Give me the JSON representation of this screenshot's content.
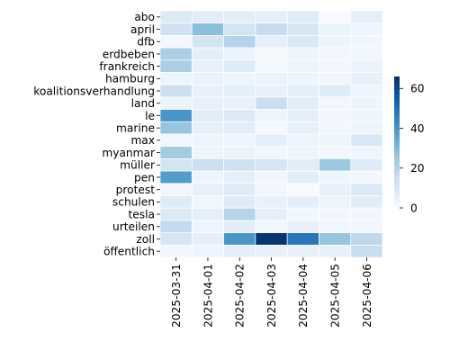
{
  "chart_data": {
    "type": "heatmap",
    "title": "",
    "xlabel": "",
    "ylabel": "",
    "x": [
      "2025-03-31",
      "2025-04-01",
      "2025-04-02",
      "2025-04-03",
      "2025-04-04",
      "2025-04-05",
      "2025-04-06"
    ],
    "y": [
      "abo",
      "april",
      "dfb",
      "erdbeben",
      "frankreich",
      "hamburg",
      "koalitionsverhandlung",
      "land",
      "le",
      "marine",
      "max",
      "myanmar",
      "müller",
      "pen",
      "protest",
      "schulen",
      "tesla",
      "urteilen",
      "zoll",
      "öffentlich"
    ],
    "values": [
      [
        9,
        7,
        7,
        6,
        8,
        0,
        6
      ],
      [
        13,
        28,
        12,
        16,
        11,
        4,
        3
      ],
      [
        2,
        12,
        20,
        6,
        10,
        3,
        2
      ],
      [
        22,
        6,
        4,
        1,
        3,
        2,
        2
      ],
      [
        22,
        5,
        8,
        1,
        3,
        2,
        4
      ],
      [
        3,
        4,
        3,
        4,
        3,
        2,
        5
      ],
      [
        14,
        5,
        6,
        5,
        6,
        8,
        3
      ],
      [
        4,
        5,
        5,
        15,
        7,
        2,
        3
      ],
      [
        40,
        7,
        9,
        3,
        6,
        2,
        3
      ],
      [
        26,
        5,
        7,
        1,
        5,
        2,
        3
      ],
      [
        2,
        3,
        3,
        6,
        3,
        3,
        10
      ],
      [
        24,
        3,
        4,
        2,
        3,
        2,
        3
      ],
      [
        12,
        14,
        13,
        11,
        7,
        25,
        8
      ],
      [
        38,
        3,
        6,
        2,
        7,
        3,
        2
      ],
      [
        2,
        5,
        8,
        2,
        0,
        5,
        9
      ],
      [
        8,
        2,
        8,
        5,
        6,
        3,
        7
      ],
      [
        9,
        6,
        20,
        6,
        2,
        2,
        2
      ],
      [
        17,
        3,
        7,
        2,
        5,
        2,
        2
      ],
      [
        11,
        6,
        40,
        65,
        48,
        26,
        18
      ],
      [
        2,
        3,
        6,
        5,
        5,
        5,
        15
      ]
    ],
    "colorbar": {
      "min": 0,
      "max": 66,
      "ticks": [
        0,
        20,
        40,
        60
      ]
    },
    "colormap": [
      "#f7fbff",
      "#deebf7",
      "#c6dbef",
      "#9ecae1",
      "#6baed6",
      "#4292c6",
      "#2171b5",
      "#08519c",
      "#08306b"
    ],
    "grid": false,
    "cell_border_color": "#ffffff"
  }
}
